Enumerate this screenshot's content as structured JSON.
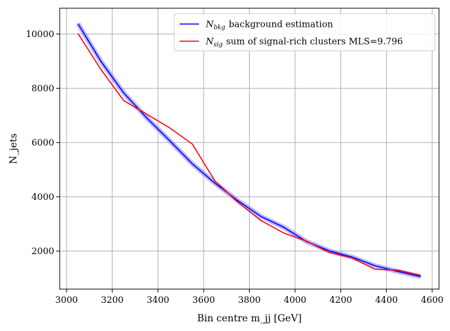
{
  "chart_data": {
    "type": "line",
    "xlabel": "Bin centre m_jj [GeV]",
    "ylabel": "N_jets",
    "xlim": [
      2970,
      4630
    ],
    "ylim": [
      600,
      10950
    ],
    "xticks": [
      3000,
      3200,
      3400,
      3600,
      3800,
      4000,
      4200,
      4400,
      4600
    ],
    "yticks": [
      2000,
      4000,
      6000,
      8000,
      10000
    ],
    "grid": true,
    "legend_position": "top-right",
    "series": [
      {
        "name": "background estimation",
        "symbol": "N",
        "subscript": "bkg",
        "color": "#0000ff",
        "band_color": "#8080ff",
        "x": [
          3050,
          3150,
          3250,
          3350,
          3450,
          3550,
          3650,
          3750,
          3850,
          3950,
          4050,
          4150,
          4250,
          4350,
          4450,
          4550
        ],
        "y": [
          10380,
          9000,
          7830,
          6920,
          6080,
          5220,
          4500,
          3860,
          3280,
          2880,
          2350,
          2010,
          1780,
          1460,
          1250,
          1060
        ]
      },
      {
        "name": "sum of signal-rich clusters MLS=9.796",
        "symbol": "N",
        "subscript": "sig",
        "color": "#ff0000",
        "x": [
          3050,
          3150,
          3250,
          3350,
          3450,
          3550,
          3650,
          3750,
          3850,
          3950,
          4050,
          4150,
          4250,
          4350,
          4450,
          4550
        ],
        "y": [
          10020,
          8700,
          7550,
          7050,
          6550,
          5950,
          4580,
          3800,
          3130,
          2670,
          2370,
          1950,
          1750,
          1330,
          1300,
          1100
        ]
      }
    ]
  }
}
